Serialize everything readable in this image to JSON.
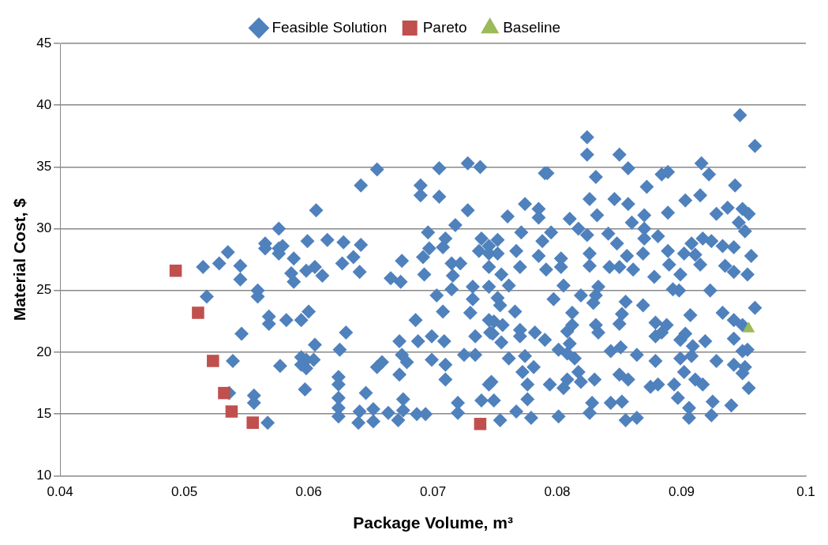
{
  "chart_data": {
    "type": "scatter",
    "xlabel": "Package Volume, m³",
    "ylabel": "Material Cost, $",
    "xlim": [
      0.04,
      0.1
    ],
    "xticks": [
      0.04,
      0.05,
      0.06,
      0.07,
      0.08,
      0.09,
      0.1
    ],
    "ylim": [
      10,
      45
    ],
    "yticks": [
      10,
      15,
      20,
      25,
      30,
      35,
      40,
      45
    ],
    "grid": "y",
    "legend": "top",
    "series": [
      {
        "name": "Feasible Solution",
        "color": "#4f81bd",
        "marker": "diamond",
        "x": [
          0.0515,
          0.0518,
          0.0535,
          0.0528,
          0.0545,
          0.0545,
          0.0546,
          0.0539,
          0.0536,
          0.0556,
          0.0556,
          0.0567,
          0.0559,
          0.0559,
          0.0565,
          0.0565,
          0.0576,
          0.0576,
          0.0579,
          0.0576,
          0.0588,
          0.0586,
          0.0588,
          0.0568,
          0.0568,
          0.0582,
          0.0594,
          0.06,
          0.0577,
          0.0594,
          0.0598,
          0.0604,
          0.0598,
          0.0594,
          0.0605,
          0.0597,
          0.0599,
          0.0615,
          0.0605,
          0.0598,
          0.0611,
          0.0628,
          0.0642,
          0.0636,
          0.0627,
          0.0641,
          0.063,
          0.0625,
          0.0606,
          0.0624,
          0.0624,
          0.0624,
          0.0624,
          0.0624,
          0.0641,
          0.064,
          0.0652,
          0.0652,
          0.0664,
          0.0672,
          0.0676,
          0.0687,
          0.0694,
          0.0646,
          0.0676,
          0.0659,
          0.0655,
          0.0673,
          0.0679,
          0.0675,
          0.0673,
          0.0686,
          0.0688,
          0.0699,
          0.0709,
          0.0699,
          0.071,
          0.071,
          0.072,
          0.072,
          0.0739,
          0.0747,
          0.0675,
          0.0666,
          0.0674,
          0.0693,
          0.0696,
          0.0697,
          0.0692,
          0.0703,
          0.0708,
          0.073,
          0.071,
          0.0708,
          0.0718,
          0.0728,
          0.0715,
          0.0722,
          0.0716,
          0.0715,
          0.0732,
          0.0732,
          0.0739,
          0.0737,
          0.0745,
          0.0734,
          0.0746,
          0.0749,
          0.0725,
          0.0734,
          0.0642,
          0.0655,
          0.069,
          0.069,
          0.0705,
          0.0705,
          0.0728,
          0.0738,
          0.079,
          0.0947,
          0.0959,
          0.0824,
          0.0824,
          0.085,
          0.0857,
          0.0831,
          0.0792,
          0.0872,
          0.0884,
          0.0889,
          0.0916,
          0.0922,
          0.0943,
          0.0774,
          0.076,
          0.0785,
          0.0785,
          0.0826,
          0.0832,
          0.0846,
          0.0857,
          0.087,
          0.086,
          0.0889,
          0.0903,
          0.0915,
          0.0928,
          0.0937,
          0.0949,
          0.0954,
          0.0946,
          0.0951,
          0.0771,
          0.0767,
          0.0752,
          0.0752,
          0.0795,
          0.0788,
          0.0785,
          0.0791,
          0.0803,
          0.0803,
          0.081,
          0.0817,
          0.0824,
          0.0826,
          0.0826,
          0.0841,
          0.0848,
          0.0842,
          0.085,
          0.0861,
          0.0856,
          0.087,
          0.087,
          0.0869,
          0.0881,
          0.0889,
          0.089,
          0.0902,
          0.0899,
          0.0908,
          0.0917,
          0.0911,
          0.0915,
          0.0924,
          0.0933,
          0.0942,
          0.0935,
          0.0942,
          0.0953,
          0.0956,
          0.0745,
          0.0761,
          0.0752,
          0.0754,
          0.0766,
          0.0745,
          0.0756,
          0.0748,
          0.077,
          0.0755,
          0.077,
          0.0782,
          0.079,
          0.0801,
          0.0797,
          0.0805,
          0.0812,
          0.0819,
          0.0831,
          0.0833,
          0.0829,
          0.0808,
          0.0812,
          0.0831,
          0.0833,
          0.081,
          0.0814,
          0.0808,
          0.0855,
          0.0852,
          0.085,
          0.0869,
          0.0879,
          0.0884,
          0.0888,
          0.0879,
          0.0899,
          0.0903,
          0.0909,
          0.0919,
          0.0878,
          0.0893,
          0.0898,
          0.0907,
          0.0923,
          0.0933,
          0.0942,
          0.0949,
          0.0959,
          0.0942,
          0.0949,
          0.0953,
          0.0843,
          0.0851,
          0.0864,
          0.0879,
          0.085,
          0.0857,
          0.0875,
          0.0881,
          0.0899,
          0.0908,
          0.0902,
          0.0911,
          0.0894,
          0.0917,
          0.0928,
          0.0942,
          0.0949,
          0.0951,
          0.0954,
          0.0897,
          0.0906,
          0.0906,
          0.0924,
          0.0925,
          0.094,
          0.0855,
          0.0864,
          0.0843,
          0.0852,
          0.0828,
          0.0826,
          0.0801,
          0.0745,
          0.0749,
          0.0754,
          0.0767,
          0.0776,
          0.0779,
          0.0761,
          0.0774,
          0.0781,
          0.0772,
          0.0776,
          0.0794,
          0.0805,
          0.0808,
          0.0817,
          0.0819,
          0.083,
          0.0755,
          0.0745,
          0.077,
          0.0745
        ],
        "values": [
          26.9,
          24.5,
          28.1,
          27.2,
          27.0,
          25.9,
          21.5,
          19.3,
          16.7,
          16.5,
          15.9,
          14.3,
          25.0,
          24.5,
          28.8,
          28.4,
          30.0,
          28.4,
          28.6,
          28.0,
          27.6,
          26.4,
          25.7,
          22.9,
          22.3,
          22.6,
          22.6,
          23.3,
          18.9,
          19.6,
          19.4,
          19.4,
          18.7,
          19.0,
          20.6,
          17.0,
          29.0,
          29.1,
          26.9,
          26.6,
          26.2,
          28.9,
          28.7,
          27.7,
          27.2,
          26.5,
          21.6,
          20.2,
          31.5,
          18.0,
          17.4,
          16.3,
          15.5,
          14.8,
          15.2,
          14.3,
          15.4,
          14.4,
          15.1,
          14.5,
          15.3,
          15.0,
          15.0,
          16.7,
          16.2,
          19.2,
          18.8,
          20.9,
          19.2,
          19.8,
          18.2,
          22.6,
          20.9,
          21.3,
          20.9,
          19.4,
          19.0,
          17.8,
          15.1,
          15.9,
          16.1,
          17.6,
          27.4,
          26.0,
          25.7,
          26.3,
          29.7,
          28.4,
          27.7,
          24.6,
          23.3,
          23.2,
          29.2,
          28.5,
          30.3,
          31.5,
          27.2,
          27.2,
          26.2,
          25.1,
          25.3,
          24.3,
          29.2,
          28.2,
          28.0,
          21.3,
          21.6,
          22.5,
          19.8,
          19.8,
          33.5,
          34.8,
          33.5,
          32.7,
          34.9,
          32.6,
          35.3,
          35.0,
          34.5,
          39.2,
          36.7,
          37.4,
          36.0,
          36.0,
          34.9,
          34.2,
          34.5,
          33.4,
          34.4,
          34.6,
          35.3,
          34.4,
          33.5,
          32.0,
          31.0,
          31.6,
          30.9,
          32.4,
          31.1,
          32.4,
          32.0,
          31.1,
          30.5,
          31.3,
          32.3,
          32.7,
          31.2,
          31.7,
          31.6,
          31.2,
          30.5,
          29.8,
          29.7,
          28.2,
          29.1,
          28.0,
          29.7,
          29.0,
          27.8,
          26.7,
          27.6,
          26.9,
          30.8,
          30.0,
          29.5,
          28.0,
          27.0,
          29.6,
          28.8,
          26.9,
          26.9,
          26.7,
          27.8,
          30.0,
          29.2,
          28.0,
          29.4,
          28.2,
          27.1,
          28.0,
          26.3,
          28.8,
          29.2,
          27.9,
          27.1,
          29.0,
          28.6,
          28.5,
          27.0,
          26.5,
          26.3,
          27.8,
          25.3,
          25.4,
          24.4,
          23.8,
          23.3,
          22.6,
          22.2,
          21.5,
          21.8,
          20.8,
          21.3,
          21.6,
          21.0,
          20.2,
          24.3,
          25.4,
          23.2,
          24.6,
          24.6,
          25.3,
          24.0,
          21.7,
          22.2,
          22.2,
          21.6,
          20.7,
          19.5,
          19.9,
          24.1,
          23.1,
          22.3,
          23.8,
          22.4,
          21.6,
          22.2,
          21.3,
          21.0,
          21.5,
          20.5,
          20.9,
          26.1,
          25.1,
          25.0,
          23.0,
          25.0,
          23.2,
          22.6,
          22.2,
          23.6,
          21.1,
          20.1,
          20.2,
          20.1,
          20.4,
          19.8,
          19.3,
          18.2,
          17.8,
          17.2,
          17.4,
          19.5,
          19.7,
          18.4,
          17.8,
          17.4,
          17.4,
          19.3,
          19.0,
          18.3,
          18.8,
          17.1,
          16.3,
          15.5,
          14.7,
          14.9,
          16.0,
          15.7,
          14.5,
          14.7,
          15.9,
          16.0,
          15.9,
          15.1,
          14.8,
          17.4,
          16.1,
          14.5,
          15.2,
          16.2,
          14.7,
          19.5,
          19.7,
          18.8,
          18.4,
          17.4,
          17.4,
          17.1,
          17.8,
          18.4,
          17.6,
          17.8,
          26.3,
          26.9,
          26.9,
          28.6
        ]
      },
      {
        "name": "Pareto",
        "color": "#c0504d",
        "marker": "square",
        "x": [
          0.0493,
          0.0511,
          0.0523,
          0.0532,
          0.0538,
          0.0555,
          0.0738
        ],
        "values": [
          26.6,
          23.2,
          19.3,
          16.7,
          15.2,
          14.3,
          14.2
        ]
      },
      {
        "name": "Baseline",
        "color": "#9bbb59",
        "marker": "triangle",
        "x": [
          0.0954
        ],
        "values": [
          21.9
        ]
      }
    ]
  }
}
